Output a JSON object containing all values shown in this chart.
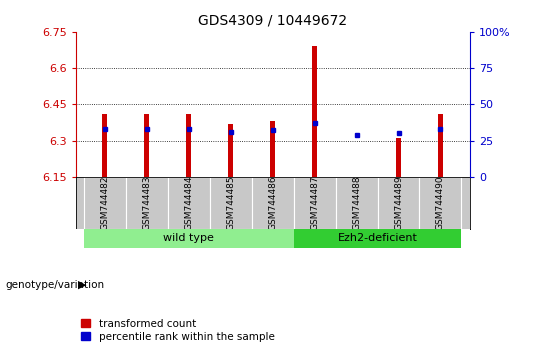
{
  "title": "GDS4309 / 10449672",
  "samples": [
    "GSM744482",
    "GSM744483",
    "GSM744484",
    "GSM744485",
    "GSM744486",
    "GSM744487",
    "GSM744488",
    "GSM744489",
    "GSM744490"
  ],
  "transformed_counts": [
    6.41,
    6.41,
    6.41,
    6.37,
    6.38,
    6.69,
    6.15,
    6.31,
    6.41
  ],
  "percentile_ranks": [
    33,
    33,
    33,
    31,
    32,
    37,
    29,
    30,
    33
  ],
  "y_min": 6.15,
  "y_max": 6.75,
  "y_ticks": [
    6.15,
    6.3,
    6.45,
    6.6,
    6.75
  ],
  "y_tick_labels": [
    "6.15",
    "6.3",
    "6.45",
    "6.6",
    "6.75"
  ],
  "y2_ticks": [
    0,
    25,
    50,
    75,
    100
  ],
  "y2_tick_labels": [
    "0",
    "25",
    "50",
    "75",
    "100%"
  ],
  "groups": [
    {
      "label": "wild type",
      "start": 0,
      "end": 5,
      "color": "#90EE90"
    },
    {
      "label": "Ezh2-deficient",
      "start": 5,
      "end": 9,
      "color": "#32CD32"
    }
  ],
  "bar_color": "#CC0000",
  "dot_color": "#0000CC",
  "bar_width": 0.12,
  "xlabel": "genotype/variation",
  "legend_items": [
    "transformed count",
    "percentile rank within the sample"
  ],
  "background_color": "#ffffff",
  "tick_color_left": "#CC0000",
  "tick_color_right": "#0000CC",
  "label_bg": "#C8C8C8",
  "group1_color": "#90EE90",
  "group2_color": "#32CD32"
}
